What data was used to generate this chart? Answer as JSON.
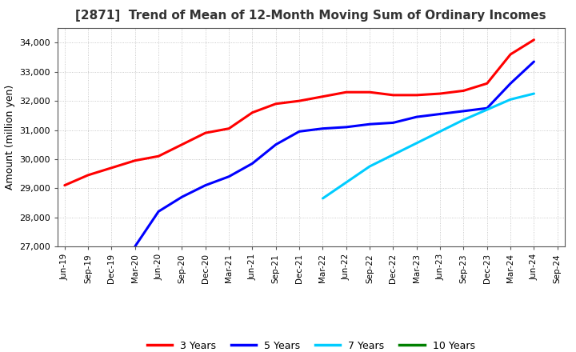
{
  "title": "[2871]  Trend of Mean of 12-Month Moving Sum of Ordinary Incomes",
  "ylabel": "Amount (million yen)",
  "ylim": [
    27000,
    34500
  ],
  "yticks": [
    27000,
    28000,
    29000,
    30000,
    31000,
    32000,
    33000,
    34000
  ],
  "background_color": "#ffffff",
  "grid_color": "#bbbbbb",
  "series": {
    "3 Years": {
      "color": "#ff0000",
      "x": [
        "Jun-19",
        "Sep-19",
        "Dec-19",
        "Mar-20",
        "Jun-20",
        "Sep-20",
        "Dec-20",
        "Mar-21",
        "Jun-21",
        "Sep-21",
        "Dec-21",
        "Mar-22",
        "Jun-22",
        "Sep-22",
        "Dec-22",
        "Mar-23",
        "Jun-23",
        "Sep-23",
        "Dec-23",
        "Mar-24",
        "Jun-24"
      ],
      "y": [
        29100,
        29450,
        29700,
        29950,
        30100,
        30500,
        30900,
        31050,
        31600,
        31900,
        32000,
        32150,
        32300,
        32300,
        32200,
        32200,
        32250,
        32350,
        32600,
        33600,
        34100
      ]
    },
    "5 Years": {
      "color": "#0000ff",
      "x": [
        "Mar-20",
        "Jun-20",
        "Sep-20",
        "Dec-20",
        "Mar-21",
        "Jun-21",
        "Sep-21",
        "Dec-21",
        "Mar-22",
        "Jun-22",
        "Sep-22",
        "Dec-22",
        "Mar-23",
        "Jun-23",
        "Sep-23",
        "Dec-23",
        "Mar-24",
        "Jun-24"
      ],
      "y": [
        27000,
        28200,
        28700,
        29100,
        29400,
        29850,
        30500,
        30950,
        31050,
        31100,
        31200,
        31250,
        31450,
        31550,
        31650,
        31750,
        32600,
        33350
      ]
    },
    "7 Years": {
      "color": "#00ccff",
      "x": [
        "Mar-22",
        "Jun-22",
        "Sep-22",
        "Dec-22",
        "Mar-23",
        "Jun-23",
        "Sep-23",
        "Dec-23",
        "Mar-24",
        "Jun-24"
      ],
      "y": [
        28650,
        29200,
        29750,
        30150,
        30550,
        30950,
        31350,
        31700,
        32050,
        32250
      ]
    },
    "10 Years": {
      "color": "#008000",
      "x": [],
      "y": []
    }
  },
  "xtick_labels": [
    "Jun-19",
    "Sep-19",
    "Dec-19",
    "Mar-20",
    "Jun-20",
    "Sep-20",
    "Dec-20",
    "Mar-21",
    "Jun-21",
    "Sep-21",
    "Dec-21",
    "Mar-22",
    "Jun-22",
    "Sep-22",
    "Dec-22",
    "Mar-23",
    "Jun-23",
    "Sep-23",
    "Dec-23",
    "Mar-24",
    "Jun-24",
    "Sep-24"
  ],
  "legend_entries": [
    "3 Years",
    "5 Years",
    "7 Years",
    "10 Years"
  ],
  "legend_colors": [
    "#ff0000",
    "#0000ff",
    "#00ccff",
    "#008000"
  ],
  "title_fontsize": 11,
  "ylabel_fontsize": 9,
  "tick_fontsize": 8,
  "xtick_fontsize": 7.5
}
